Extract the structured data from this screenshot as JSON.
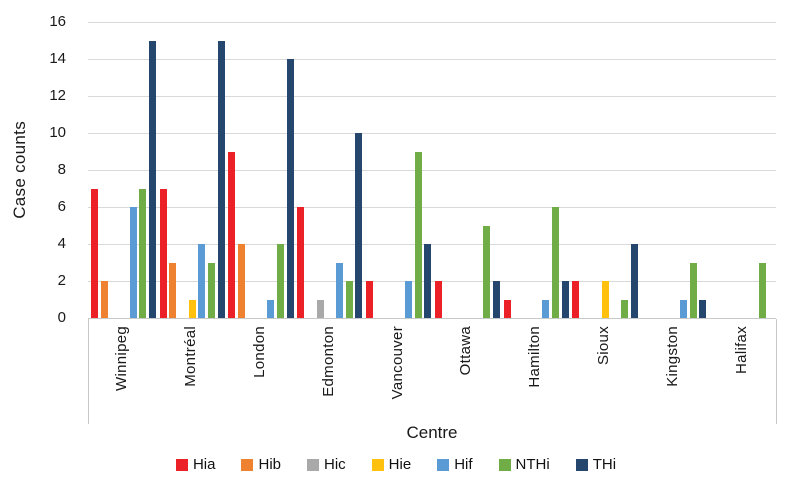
{
  "chart_data": {
    "type": "bar",
    "title": "",
    "xlabel": "Centre",
    "ylabel": "Case counts",
    "ylim": [
      0,
      16
    ],
    "yticks": [
      0,
      2,
      4,
      6,
      8,
      10,
      12,
      14,
      16
    ],
    "grid": true,
    "legend_position": "bottom",
    "categories": [
      "Winnipeg",
      "Montréal",
      "London",
      "Edmonton",
      "Vancouver",
      "Ottawa",
      "Hamilton",
      "Sioux",
      "Kingston",
      "Halifax"
    ],
    "series": [
      {
        "name": "Hia",
        "color": "#EC2127",
        "values": [
          7,
          7,
          9,
          6,
          2,
          2,
          1,
          2,
          0,
          0
        ]
      },
      {
        "name": "Hib",
        "color": "#EE8230",
        "values": [
          2,
          3,
          4,
          0,
          0,
          0,
          0,
          0,
          0,
          0
        ]
      },
      {
        "name": "Hic",
        "color": "#A9A9A9",
        "values": [
          0,
          0,
          0,
          1,
          0,
          0,
          0,
          0,
          0,
          0
        ]
      },
      {
        "name": "Hie",
        "color": "#FFC10E",
        "values": [
          0,
          1,
          0,
          0,
          0,
          0,
          0,
          2,
          0,
          0
        ]
      },
      {
        "name": "Hif",
        "color": "#5B9BD5",
        "values": [
          6,
          4,
          1,
          3,
          2,
          0,
          1,
          0,
          1,
          0
        ]
      },
      {
        "name": "NTHi",
        "color": "#70AD47",
        "values": [
          7,
          3,
          4,
          2,
          9,
          5,
          6,
          1,
          3,
          3
        ]
      },
      {
        "name": "THi",
        "color": "#25476E",
        "values": [
          15,
          15,
          14,
          10,
          4,
          2,
          2,
          4,
          1,
          0
        ]
      }
    ]
  }
}
